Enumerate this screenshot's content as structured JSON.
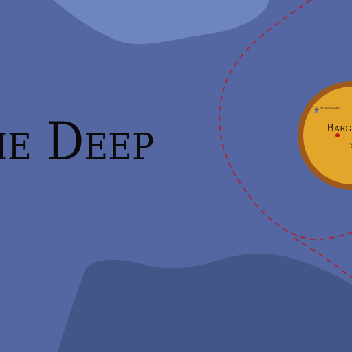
{
  "map": {
    "region_label": "The Deep",
    "island": {
      "name": "Barg",
      "town": "Northport"
    },
    "colors": {
      "ocean": "#5467a3",
      "shallows": "#6f85bd",
      "deep_water": "#435688",
      "route": "#a3283a",
      "island_fill": "#e3a52a",
      "island_rim": "#a0591d",
      "city_marker": "#c01818"
    }
  }
}
